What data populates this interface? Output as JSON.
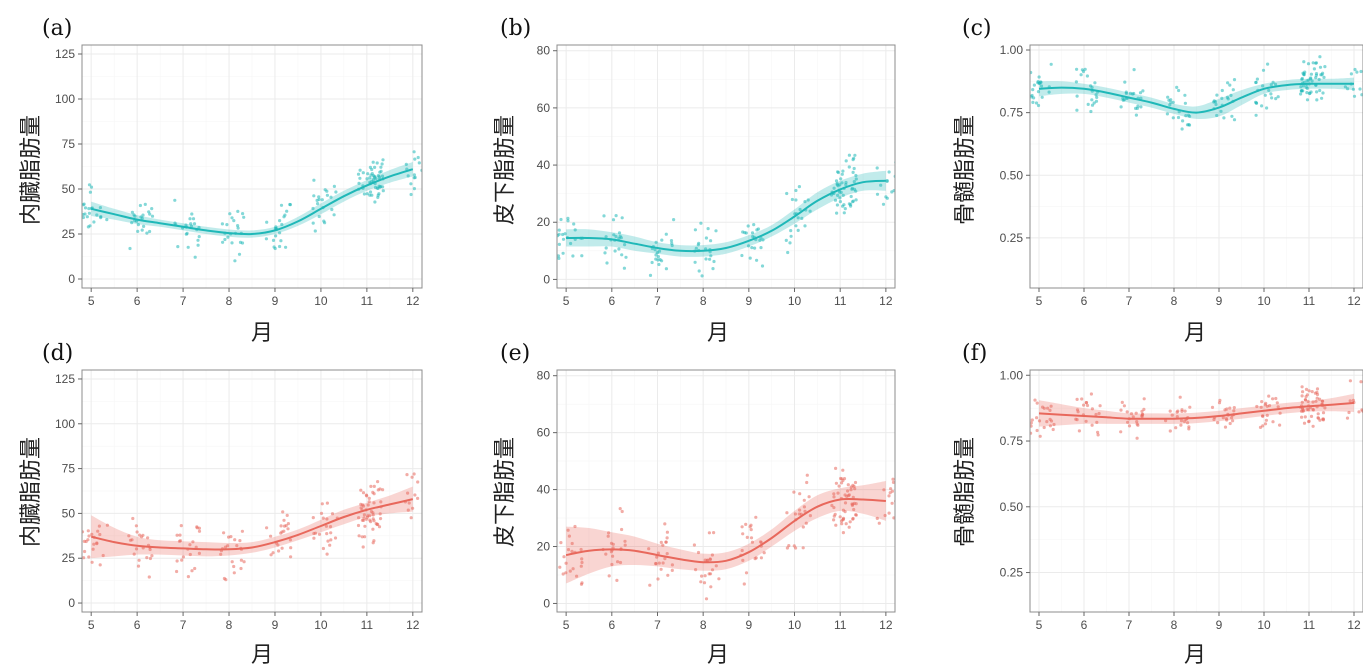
{
  "colors": {
    "teal": "#1fb8b8",
    "salmon": "#e8685c"
  },
  "chart_data": [
    {
      "panel": "(a)",
      "type": "scatter",
      "color": "teal",
      "xlabel": "月",
      "ylabel": "内臓脂肪量",
      "xlim": [
        4.8,
        12.2
      ],
      "ylim": [
        -5,
        130
      ],
      "xticks": [
        5,
        6,
        7,
        8,
        9,
        10,
        11,
        12
      ],
      "yticks": [
        0,
        25,
        50,
        75,
        100,
        125
      ],
      "ytick_labels": [
        "0",
        "25",
        "50",
        "75",
        "100",
        "125"
      ],
      "smooth": {
        "x": [
          5,
          5.5,
          6,
          6.5,
          7,
          7.5,
          8,
          8.5,
          9,
          9.5,
          10,
          10.5,
          11,
          11.5,
          12
        ],
        "y": [
          39,
          36,
          33,
          31,
          29,
          27,
          25.5,
          25,
          27,
          32,
          39,
          46,
          52,
          57,
          61
        ],
        "band": [
          4,
          3,
          2.5,
          2,
          2,
          2,
          2,
          2,
          2,
          2.5,
          3,
          3,
          3,
          3.5,
          4
        ]
      },
      "scatter_seed": 11,
      "scatter_spread": 9
    },
    {
      "panel": "(b)",
      "type": "scatter",
      "color": "teal",
      "xlabel": "月",
      "ylabel": "皮下脂肪量",
      "xlim": [
        4.8,
        12.2
      ],
      "ylim": [
        -3,
        82
      ],
      "xticks": [
        5,
        6,
        7,
        8,
        9,
        10,
        11,
        12
      ],
      "yticks": [
        0,
        20,
        40,
        60,
        80
      ],
      "ytick_labels": [
        "0",
        "20",
        "40",
        "60",
        "80"
      ],
      "smooth": {
        "x": [
          5,
          5.5,
          6,
          6.5,
          7,
          7.5,
          8,
          8.5,
          9,
          9.5,
          10,
          10.5,
          11,
          11.5,
          12
        ],
        "y": [
          14.5,
          14.5,
          14,
          12.5,
          11,
          10,
          10,
          11,
          13.5,
          17,
          22,
          27.5,
          31.5,
          34,
          34.5
        ],
        "band": [
          3,
          3,
          2.5,
          2.5,
          2,
          2,
          2,
          2,
          2,
          2,
          2.5,
          3,
          3,
          3,
          3.5
        ]
      },
      "scatter_seed": 23,
      "scatter_spread": 7
    },
    {
      "panel": "(c)",
      "type": "scatter",
      "color": "teal",
      "xlabel": "月",
      "ylabel": "骨髄脂肪量",
      "xlim": [
        4.8,
        12.2
      ],
      "ylim": [
        0.05,
        1.02
      ],
      "xticks": [
        5,
        6,
        7,
        8,
        9,
        10,
        11,
        12
      ],
      "yticks": [
        0.25,
        0.5,
        0.75,
        1.0
      ],
      "ytick_labels": [
        "0.25",
        "0.50",
        "0.75",
        "1.00"
      ],
      "smooth": {
        "x": [
          5,
          5.5,
          6,
          6.5,
          7,
          7.5,
          8,
          8.5,
          9,
          9.5,
          10,
          10.5,
          11,
          11.5,
          12
        ],
        "y": [
          0.845,
          0.85,
          0.845,
          0.83,
          0.81,
          0.79,
          0.765,
          0.75,
          0.77,
          0.81,
          0.845,
          0.86,
          0.865,
          0.865,
          0.865
        ],
        "band": [
          0.03,
          0.025,
          0.02,
          0.02,
          0.02,
          0.02,
          0.02,
          0.025,
          0.035,
          0.03,
          0.02,
          0.02,
          0.02,
          0.02,
          0.025
        ]
      },
      "scatter_seed": 37,
      "scatter_spread": 0.06
    },
    {
      "panel": "(d)",
      "type": "scatter",
      "color": "salmon",
      "xlabel": "月",
      "ylabel": "内臓脂肪量",
      "xlim": [
        4.8,
        12.2
      ],
      "ylim": [
        -5,
        130
      ],
      "xticks": [
        5,
        6,
        7,
        8,
        9,
        10,
        11,
        12
      ],
      "yticks": [
        0,
        25,
        50,
        75,
        100,
        125
      ],
      "ytick_labels": [
        "0",
        "25",
        "50",
        "75",
        "100",
        "125"
      ],
      "smooth": {
        "x": [
          5,
          5.5,
          6,
          6.5,
          7,
          7.5,
          8,
          8.5,
          9,
          9.5,
          10,
          10.5,
          11,
          11.5,
          12
        ],
        "y": [
          37,
          34,
          32,
          31,
          30.5,
          30,
          30,
          31,
          34,
          38,
          43,
          48,
          52,
          55,
          58
        ],
        "band": [
          12,
          8,
          5,
          4,
          4,
          4,
          3.5,
          3,
          3,
          3,
          3.5,
          4,
          4,
          5,
          7
        ]
      },
      "scatter_seed": 53,
      "scatter_spread": 12
    },
    {
      "panel": "(e)",
      "type": "scatter",
      "color": "salmon",
      "xlabel": "月",
      "ylabel": "皮下脂肪量",
      "xlim": [
        4.8,
        12.2
      ],
      "ylim": [
        -3,
        82
      ],
      "xticks": [
        5,
        6,
        7,
        8,
        9,
        10,
        11,
        12
      ],
      "yticks": [
        0,
        20,
        40,
        60,
        80
      ],
      "ytick_labels": [
        "0",
        "20",
        "40",
        "60",
        "80"
      ],
      "smooth": {
        "x": [
          5,
          5.5,
          6,
          6.5,
          7,
          7.5,
          8,
          8.5,
          9,
          9.5,
          10,
          10.5,
          11,
          11.5,
          12
        ],
        "y": [
          17,
          18.5,
          19,
          18.5,
          17,
          15.5,
          14.5,
          15,
          18,
          23,
          29,
          34,
          36.5,
          36.5,
          36
        ],
        "band": [
          10,
          8,
          6,
          5,
          4,
          3.5,
          3,
          3,
          3,
          3,
          3.5,
          4,
          4,
          5,
          7
        ]
      },
      "scatter_seed": 71,
      "scatter_spread": 8
    },
    {
      "panel": "(f)",
      "type": "scatter",
      "color": "salmon",
      "xlabel": "月",
      "ylabel": "骨髄脂肪量",
      "xlim": [
        4.8,
        12.2
      ],
      "ylim": [
        0.1,
        1.02
      ],
      "xticks": [
        5,
        6,
        7,
        8,
        9,
        10,
        11,
        12
      ],
      "yticks": [
        0.25,
        0.5,
        0.75,
        1.0
      ],
      "ytick_labels": [
        "0.25",
        "0.50",
        "0.75",
        "1.00"
      ],
      "smooth": {
        "x": [
          5,
          5.5,
          6,
          6.5,
          7,
          7.5,
          8,
          8.5,
          9,
          9.5,
          10,
          10.5,
          11,
          11.5,
          12
        ],
        "y": [
          0.855,
          0.85,
          0.845,
          0.84,
          0.835,
          0.835,
          0.835,
          0.838,
          0.845,
          0.855,
          0.865,
          0.875,
          0.882,
          0.888,
          0.895
        ],
        "band": [
          0.05,
          0.04,
          0.03,
          0.025,
          0.02,
          0.02,
          0.02,
          0.02,
          0.02,
          0.02,
          0.02,
          0.02,
          0.02,
          0.025,
          0.035
        ]
      },
      "scatter_seed": 97,
      "scatter_spread": 0.05
    }
  ]
}
